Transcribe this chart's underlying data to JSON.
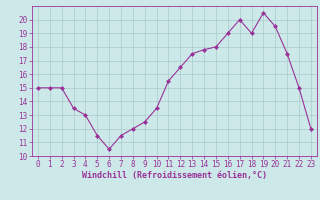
{
  "x": [
    0,
    1,
    2,
    3,
    4,
    5,
    6,
    7,
    8,
    9,
    10,
    11,
    12,
    13,
    14,
    15,
    16,
    17,
    18,
    19,
    20,
    21,
    22,
    23
  ],
  "y": [
    15,
    15,
    15,
    13.5,
    13,
    11.5,
    10.5,
    11.5,
    12,
    12.5,
    13.5,
    15.5,
    16.5,
    17.5,
    17.8,
    18,
    19,
    20,
    19,
    20.5,
    19.5,
    17.5,
    15,
    12
  ],
  "line_color": "#993399",
  "marker": "D",
  "markersize": 2.0,
  "linewidth": 0.8,
  "background_color": "#cce8e8",
  "grid_color": "#aacccc",
  "xlabel": "Windchill (Refroidissement éolien,°C)",
  "xlabel_color": "#993399",
  "xlabel_fontsize": 6.0,
  "tick_color": "#993399",
  "tick_fontsize": 5.5,
  "ylim": [
    10,
    21
  ],
  "xlim": [
    -0.5,
    23.5
  ],
  "yticks": [
    10,
    11,
    12,
    13,
    14,
    15,
    16,
    17,
    18,
    19,
    20
  ],
  "xticks": [
    0,
    1,
    2,
    3,
    4,
    5,
    6,
    7,
    8,
    9,
    10,
    11,
    12,
    13,
    14,
    15,
    16,
    17,
    18,
    19,
    20,
    21,
    22,
    23
  ]
}
